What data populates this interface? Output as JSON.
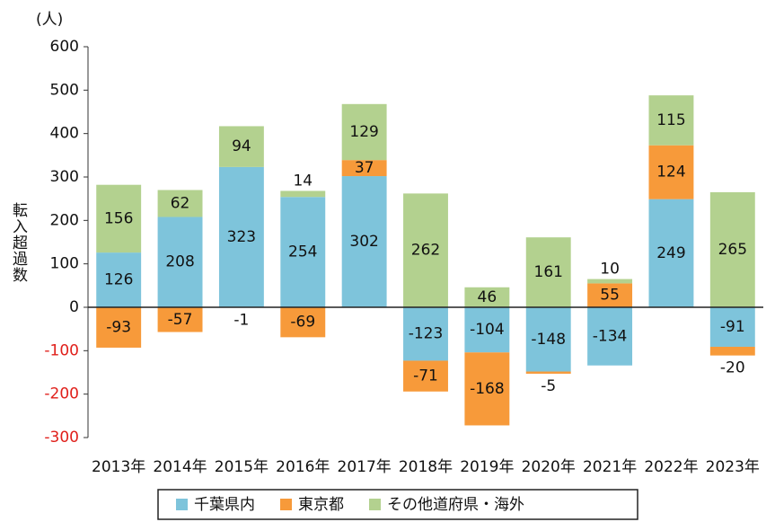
{
  "chart_data": {
    "type": "bar",
    "stacked": true,
    "y_unit": "(人)",
    "ylabel": "転入超過数",
    "categories": [
      "2013年",
      "2014年",
      "2015年",
      "2016年",
      "2017年",
      "2018年",
      "2019年",
      "2020年",
      "2021年",
      "2022年",
      "2023年"
    ],
    "series": [
      {
        "name": "千葉県内",
        "color": "#7ec4db",
        "values": [
          126,
          208,
          323,
          254,
          302,
          -123,
          -104,
          -148,
          -134,
          249,
          -91
        ]
      },
      {
        "name": "東京都",
        "color": "#f79a3a",
        "values": [
          -93,
          -57,
          -1,
          -69,
          37,
          -71,
          -168,
          -5,
          55,
          124,
          -20
        ]
      },
      {
        "name": "その他道府県・海外",
        "color": "#b3d18f",
        "values": [
          156,
          62,
          94,
          14,
          129,
          262,
          46,
          161,
          10,
          115,
          265
        ]
      }
    ],
    "ylim": [
      -300,
      600
    ],
    "yticks": [
      -300,
      -200,
      -100,
      0,
      100,
      200,
      300,
      400,
      500,
      600
    ],
    "negative_tick_color": "#e0201b",
    "grid": false,
    "legend": "bottom"
  }
}
